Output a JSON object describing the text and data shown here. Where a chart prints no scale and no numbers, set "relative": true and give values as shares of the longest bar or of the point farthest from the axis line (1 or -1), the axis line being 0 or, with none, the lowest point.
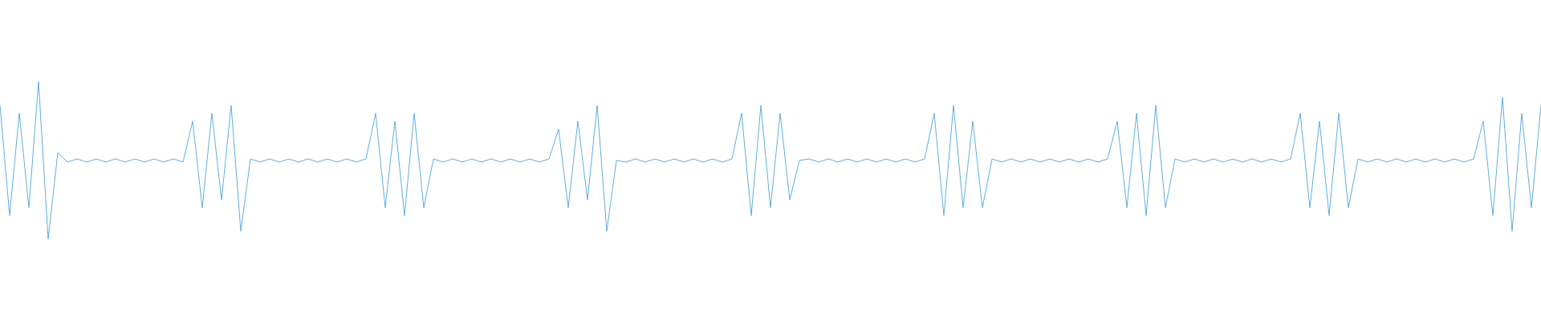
{
  "chart_data": {
    "type": "line",
    "relative": true,
    "color": "#5dade2",
    "categories": [
      null,
      null,
      null,
      null,
      null,
      null,
      null,
      null,
      null,
      null,
      null,
      null,
      null,
      null,
      null,
      null,
      null,
      null,
      null,
      null,
      null,
      null,
      null,
      null,
      null,
      null,
      null,
      null,
      null,
      null,
      null,
      null,
      null,
      null,
      null,
      null,
      null,
      null,
      null,
      null,
      null,
      null,
      null,
      null,
      null,
      null,
      null,
      null,
      null,
      null,
      null,
      null,
      null,
      null,
      null,
      null,
      null,
      null,
      null,
      null,
      null,
      null,
      null,
      null,
      null,
      null,
      null,
      null,
      null,
      null,
      null,
      null,
      null,
      null,
      null,
      null,
      null,
      null,
      null,
      null,
      null,
      null,
      null,
      null,
      null,
      null,
      null,
      null,
      null,
      null,
      null,
      null,
      null,
      null,
      null,
      null,
      null,
      null,
      null,
      null,
      null,
      null,
      null,
      null,
      null,
      null,
      null,
      null,
      null,
      null,
      null,
      null,
      null,
      null,
      null,
      null,
      null,
      null,
      null,
      null,
      null,
      null,
      null,
      null,
      null,
      null,
      null,
      null,
      null,
      null,
      null,
      null,
      null,
      null,
      null,
      null,
      null,
      null,
      null,
      null,
      null,
      null,
      null,
      null,
      null,
      null,
      null,
      null,
      null,
      null,
      null,
      null,
      null,
      null,
      null,
      null,
      null,
      null,
      null,
      null,
      null
    ],
    "values": [
      0.85,
      0.15,
      0.8,
      0.2,
      1,
      0,
      0.55,
      0.49,
      0.51,
      0.49,
      0.51,
      0.49,
      0.51,
      0.49,
      0.51,
      0.49,
      0.51,
      0.49,
      0.51,
      0.49,
      0.75,
      0.2,
      0.8,
      0.25,
      0.85,
      0.05,
      0.51,
      0.49,
      0.51,
      0.49,
      0.51,
      0.49,
      0.51,
      0.49,
      0.51,
      0.49,
      0.51,
      0.49,
      0.51,
      0.8,
      0.2,
      0.75,
      0.15,
      0.8,
      0.2,
      0.51,
      0.49,
      0.51,
      0.49,
      0.51,
      0.49,
      0.51,
      0.49,
      0.51,
      0.49,
      0.51,
      0.49,
      0.51,
      0.7,
      0.2,
      0.75,
      0.25,
      0.85,
      0.05,
      0.5,
      0.49,
      0.51,
      0.49,
      0.51,
      0.49,
      0.51,
      0.49,
      0.51,
      0.49,
      0.51,
      0.49,
      0.51,
      0.8,
      0.15,
      0.85,
      0.2,
      0.8,
      0.25,
      0.5,
      0.51,
      0.49,
      0.51,
      0.49,
      0.51,
      0.49,
      0.51,
      0.49,
      0.51,
      0.49,
      0.51,
      0.49,
      0.51,
      0.8,
      0.15,
      0.85,
      0.2,
      0.75,
      0.2,
      0.51,
      0.49,
      0.51,
      0.49,
      0.51,
      0.49,
      0.51,
      0.49,
      0.51,
      0.49,
      0.51,
      0.49,
      0.51,
      0.75,
      0.2,
      0.8,
      0.15,
      0.85,
      0.2,
      0.51,
      0.49,
      0.51,
      0.49,
      0.51,
      0.49,
      0.51,
      0.49,
      0.51,
      0.49,
      0.51,
      0.49,
      0.51,
      0.8,
      0.2,
      0.75,
      0.15,
      0.8,
      0.2,
      0.51,
      0.49,
      0.51,
      0.49,
      0.51,
      0.49,
      0.51,
      0.49,
      0.51,
      0.49,
      0.51,
      0.49,
      0.51,
      0.75,
      0.15,
      0.9,
      0.05,
      0.8,
      0.2,
      0.85
    ]
  }
}
